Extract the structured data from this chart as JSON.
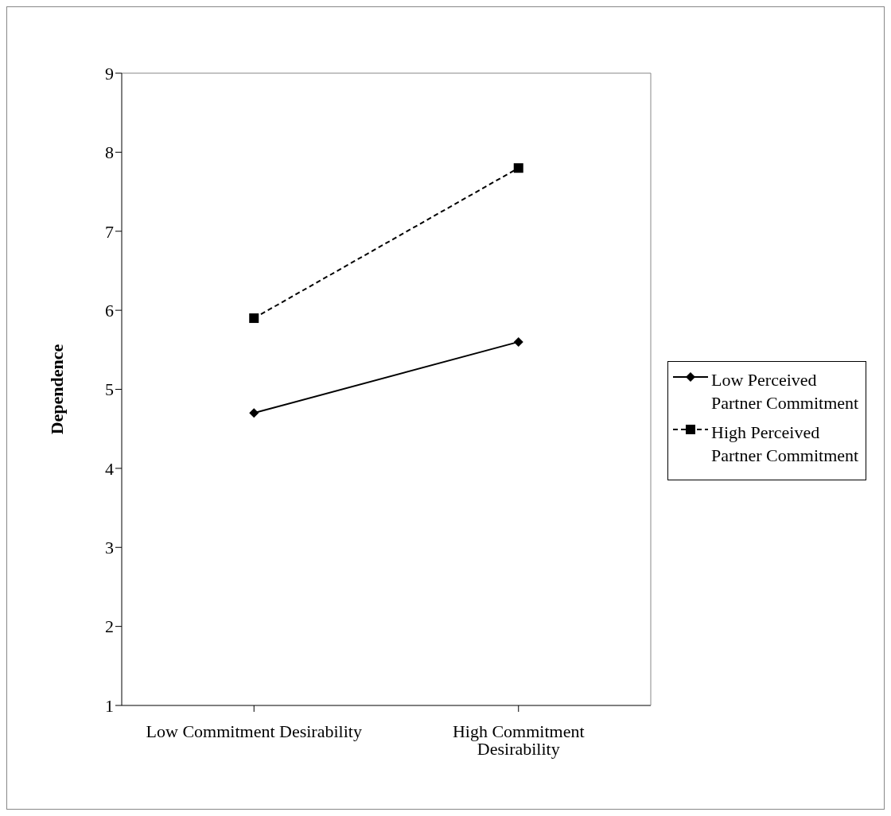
{
  "chart_data": {
    "type": "line",
    "ylabel": "Dependence",
    "categories": [
      "Low Commitment Desirability",
      "High Commitment Desirability"
    ],
    "series": [
      {
        "name": "Low Perceived Partner Commitment",
        "color": "#000000",
        "values": [
          4.7,
          5.6
        ],
        "marker": "diamond",
        "line_style": "solid"
      },
      {
        "name": "High Perceived Partner Commitment",
        "color": "#000000",
        "values": [
          5.9,
          7.8
        ],
        "marker": "square",
        "line_style": "dashed"
      }
    ],
    "ylim": [
      1,
      9
    ],
    "yticks": [
      1,
      2,
      3,
      4,
      5,
      6,
      7,
      8,
      9
    ],
    "grid": false,
    "legend": "right"
  }
}
